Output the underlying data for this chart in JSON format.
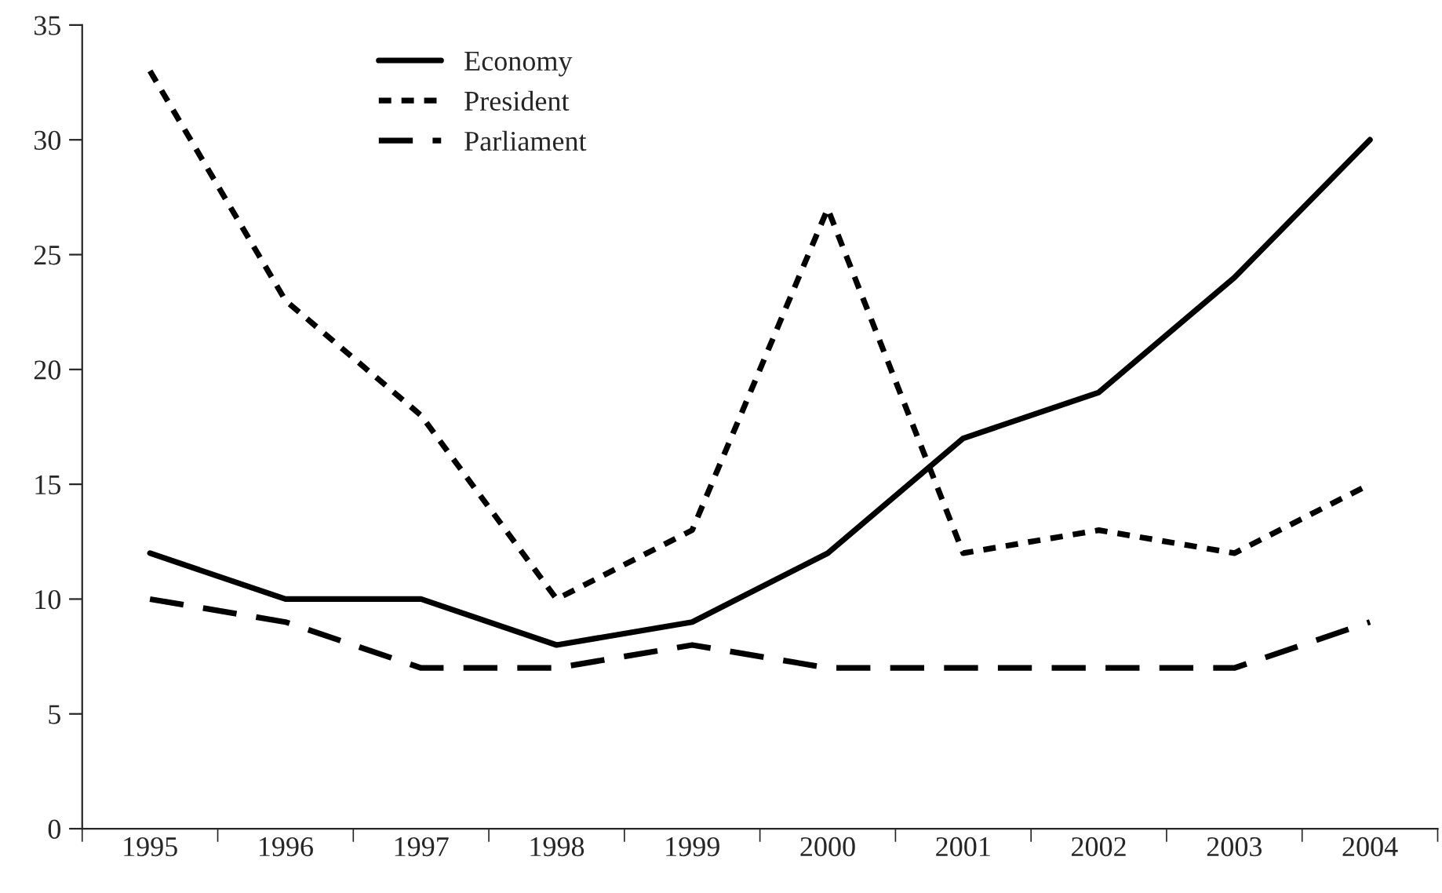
{
  "chart_data": {
    "type": "line",
    "categories": [
      "1995",
      "1996",
      "1997",
      "1998",
      "1999",
      "2000",
      "2001",
      "2002",
      "2003",
      "2004"
    ],
    "series": [
      {
        "name": "Economy",
        "color": "#000000",
        "line_style": "solid",
        "values": [
          12,
          10,
          10,
          8,
          9,
          12,
          17,
          19,
          24,
          30
        ]
      },
      {
        "name": "President",
        "color": "#000000",
        "line_style": "dotted",
        "values": [
          33,
          23,
          18,
          10,
          13,
          27,
          12,
          13,
          12,
          15
        ]
      },
      {
        "name": "Parliament",
        "color": "#000000",
        "line_style": "dashed",
        "values": [
          10,
          9,
          7,
          7,
          8,
          7,
          7,
          7,
          7,
          9
        ]
      }
    ],
    "ylim": [
      0,
      35
    ],
    "yticks": [
      0,
      5,
      10,
      15,
      20,
      25,
      30,
      35
    ],
    "grid": false,
    "legend": "top left",
    "marker": "none"
  }
}
